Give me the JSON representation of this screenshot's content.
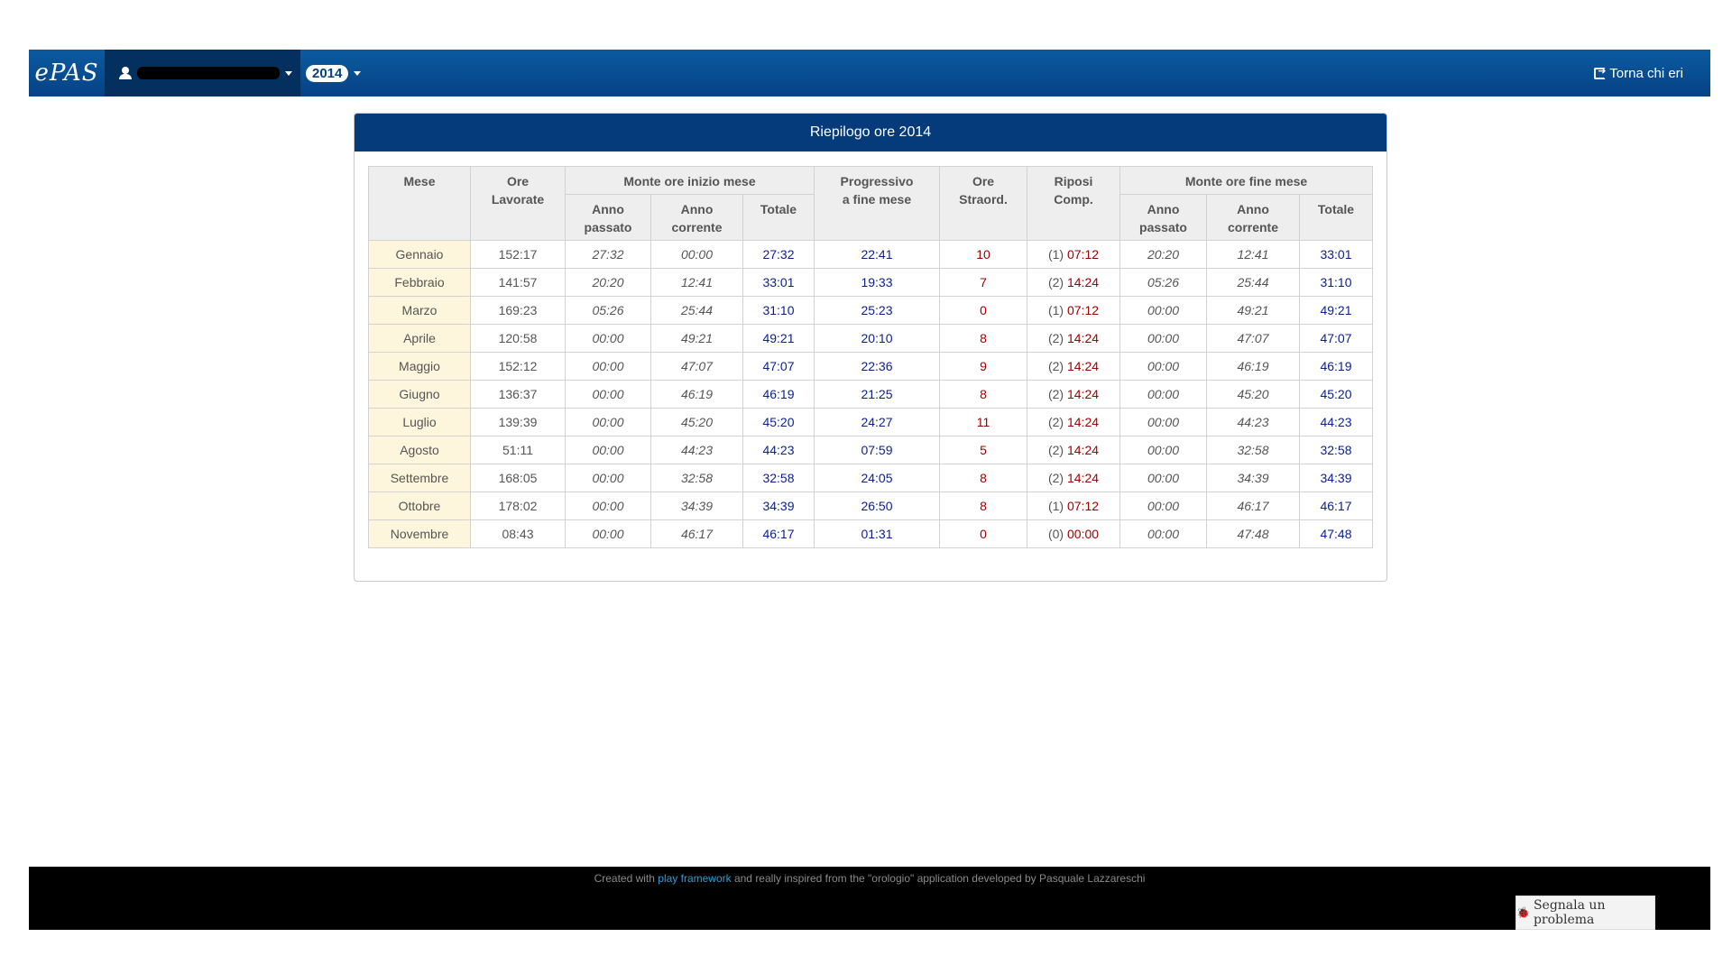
{
  "navbar": {
    "brand": "ePAS",
    "user_name": "",
    "year": "2014",
    "right_link": "Torna chi eri"
  },
  "panel": {
    "title": "Riepilogo ore 2014"
  },
  "table": {
    "headers": {
      "mese": "Mese",
      "ore_lavorate_1": "Ore",
      "ore_lavorate_2": "Lavorate",
      "monte_inizio": "Monte ore inizio mese",
      "progressivo_1": "Progressivo",
      "progressivo_2": "a fine mese",
      "straord_1": "Ore",
      "straord_2": "Straord.",
      "riposi_1": "Riposi",
      "riposi_2": "Comp.",
      "monte_fine": "Monte ore fine mese",
      "anno_passato_1": "Anno",
      "anno_passato_2": "passato",
      "anno_corrente_1": "Anno",
      "anno_corrente_2": "corrente",
      "totale": "Totale"
    },
    "rows": [
      {
        "mese": "Gennaio",
        "ore_lavorate": "152:17",
        "inizio_passato": "27:32",
        "inizio_corrente": "00:00",
        "inizio_totale": "27:32",
        "progressivo": "22:41",
        "straord": "10",
        "riposi_n": "(1)",
        "riposi_ore": "07:12",
        "fine_passato": "20:20",
        "fine_corrente": "12:41",
        "fine_totale": "33:01"
      },
      {
        "mese": "Febbraio",
        "ore_lavorate": "141:57",
        "inizio_passato": "20:20",
        "inizio_corrente": "12:41",
        "inizio_totale": "33:01",
        "progressivo": "19:33",
        "straord": "7",
        "riposi_n": "(2)",
        "riposi_ore": "14:24",
        "fine_passato": "05:26",
        "fine_corrente": "25:44",
        "fine_totale": "31:10"
      },
      {
        "mese": "Marzo",
        "ore_lavorate": "169:23",
        "inizio_passato": "05:26",
        "inizio_corrente": "25:44",
        "inizio_totale": "31:10",
        "progressivo": "25:23",
        "straord": "0",
        "riposi_n": "(1)",
        "riposi_ore": "07:12",
        "fine_passato": "00:00",
        "fine_corrente": "49:21",
        "fine_totale": "49:21"
      },
      {
        "mese": "Aprile",
        "ore_lavorate": "120:58",
        "inizio_passato": "00:00",
        "inizio_corrente": "49:21",
        "inizio_totale": "49:21",
        "progressivo": "20:10",
        "straord": "8",
        "riposi_n": "(2)",
        "riposi_ore": "14:24",
        "fine_passato": "00:00",
        "fine_corrente": "47:07",
        "fine_totale": "47:07"
      },
      {
        "mese": "Maggio",
        "ore_lavorate": "152:12",
        "inizio_passato": "00:00",
        "inizio_corrente": "47:07",
        "inizio_totale": "47:07",
        "progressivo": "22:36",
        "straord": "9",
        "riposi_n": "(2)",
        "riposi_ore": "14:24",
        "fine_passato": "00:00",
        "fine_corrente": "46:19",
        "fine_totale": "46:19"
      },
      {
        "mese": "Giugno",
        "ore_lavorate": "136:37",
        "inizio_passato": "00:00",
        "inizio_corrente": "46:19",
        "inizio_totale": "46:19",
        "progressivo": "21:25",
        "straord": "8",
        "riposi_n": "(2)",
        "riposi_ore": "14:24",
        "fine_passato": "00:00",
        "fine_corrente": "45:20",
        "fine_totale": "45:20"
      },
      {
        "mese": "Luglio",
        "ore_lavorate": "139:39",
        "inizio_passato": "00:00",
        "inizio_corrente": "45:20",
        "inizio_totale": "45:20",
        "progressivo": "24:27",
        "straord": "11",
        "riposi_n": "(2)",
        "riposi_ore": "14:24",
        "fine_passato": "00:00",
        "fine_corrente": "44:23",
        "fine_totale": "44:23"
      },
      {
        "mese": "Agosto",
        "ore_lavorate": "51:11",
        "inizio_passato": "00:00",
        "inizio_corrente": "44:23",
        "inizio_totale": "44:23",
        "progressivo": "07:59",
        "straord": "5",
        "riposi_n": "(2)",
        "riposi_ore": "14:24",
        "fine_passato": "00:00",
        "fine_corrente": "32:58",
        "fine_totale": "32:58"
      },
      {
        "mese": "Settembre",
        "ore_lavorate": "168:05",
        "inizio_passato": "00:00",
        "inizio_corrente": "32:58",
        "inizio_totale": "32:58",
        "progressivo": "24:05",
        "straord": "8",
        "riposi_n": "(2)",
        "riposi_ore": "14:24",
        "fine_passato": "00:00",
        "fine_corrente": "34:39",
        "fine_totale": "34:39"
      },
      {
        "mese": "Ottobre",
        "ore_lavorate": "178:02",
        "inizio_passato": "00:00",
        "inizio_corrente": "34:39",
        "inizio_totale": "34:39",
        "progressivo": "26:50",
        "straord": "8",
        "riposi_n": "(1)",
        "riposi_ore": "07:12",
        "fine_passato": "00:00",
        "fine_corrente": "46:17",
        "fine_totale": "46:17"
      },
      {
        "mese": "Novembre",
        "ore_lavorate": "08:43",
        "inizio_passato": "00:00",
        "inizio_corrente": "46:17",
        "inizio_totale": "46:17",
        "progressivo": "01:31",
        "straord": "0",
        "riposi_n": "(0)",
        "riposi_ore": "00:00",
        "fine_passato": "00:00",
        "fine_corrente": "47:48",
        "fine_totale": "47:48"
      }
    ]
  },
  "footer": {
    "text_before": "Created with ",
    "link_text": "play framework",
    "text_after": " and really inspired from the \"orologio\" application developed by Pasquale Lazzareschi",
    "report_button": "Segnala un problema"
  },
  "colors": {
    "navbar": "#054285",
    "panel_heading": "#053b7a",
    "month_cell": "#fdf6dc",
    "blue_value": "#0a1f8f",
    "red_value": "#a00000"
  }
}
